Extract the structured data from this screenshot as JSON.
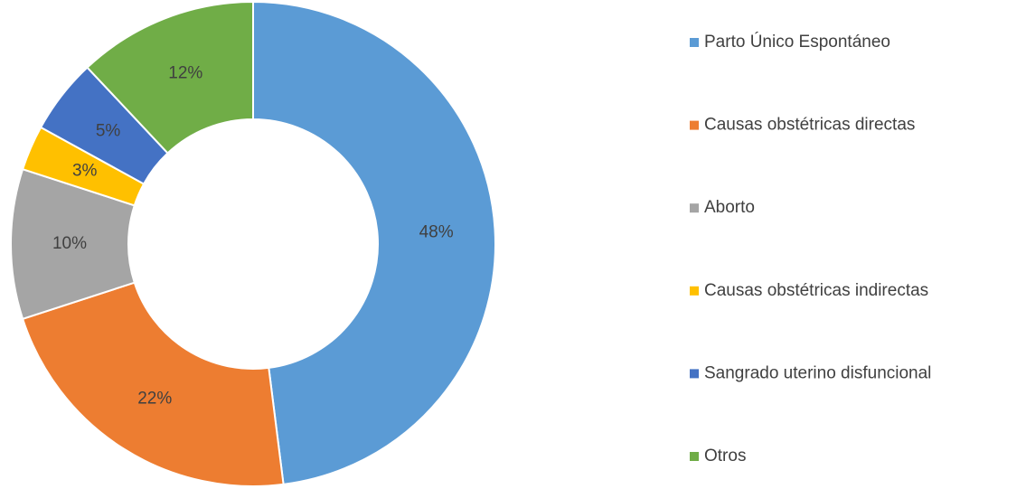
{
  "chart_data": {
    "type": "donut",
    "categories": [
      "Parto Único Espontáneo",
      "Causas obstétricas directas",
      "Aborto",
      "Causas obstétricas indirectas",
      "Sangrado uterino disfuncional",
      "Otros"
    ],
    "values": [
      48,
      22,
      10,
      3,
      5,
      12
    ],
    "value_labels": [
      "48%",
      "22%",
      "10%",
      "3%",
      "5%",
      "12%"
    ],
    "colors": [
      "#5b9bd5",
      "#ed7d31",
      "#a5a5a5",
      "#ffc000",
      "#4472c4",
      "#70ad47"
    ],
    "legend": "right"
  }
}
